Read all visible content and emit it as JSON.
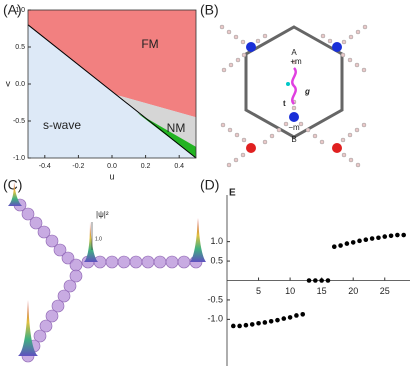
{
  "panel_labels": [
    "(A)",
    "(B)",
    "(C)",
    "(D)"
  ],
  "chart_data": [
    {
      "type": "phase",
      "x_label": "u",
      "y_label": "v",
      "xlim": [
        -0.5,
        0.5
      ],
      "ylim": [
        -1,
        1
      ],
      "xticks": [
        -0.4,
        -0.2,
        {
          "value": 0,
          "label": "0.0"
        },
        0.2,
        0.4
      ],
      "yticks": [
        {
          "value": 1,
          "label": "1.0"
        },
        0.5,
        {
          "value": 0,
          "label": "0.0"
        },
        -0.5,
        {
          "value": -1,
          "label": "-1.0"
        }
      ],
      "regions": [
        {
          "name": "s-wave",
          "color": "#dde9f7",
          "u": [
            -0.5,
            0.5,
            0.5,
            -0.5
          ],
          "v": [
            1,
            1,
            -1,
            -1
          ]
        },
        {
          "name": "FM",
          "color": "#f28080",
          "u": [
            -0.5,
            0.5,
            0.5,
            0.03,
            -0.5
          ],
          "v": [
            1,
            1,
            -0.45,
            -0.15,
            0.8
          ]
        },
        {
          "name": "NM",
          "color": "#d6d6d6",
          "u": [
            0.03,
            0.5,
            0.5
          ],
          "v": [
            -0.15,
            -0.45,
            -1
          ]
        },
        {
          "color": "#22b322",
          "u": [
            0.15,
            0.5,
            0.5
          ],
          "v": [
            -0.39,
            -0.85,
            -1
          ]
        }
      ],
      "boundary": {
        "u": [
          -0.5,
          0.5
        ],
        "v": [
          0.8,
          -1
        ],
        "color": "#000000"
      }
    },
    {
      "type": "scatter",
      "y_label": "E",
      "color": "#000000",
      "xlim": [
        0,
        29
      ],
      "ylim": [
        -2.2,
        2.2
      ],
      "xticks": [
        5,
        10,
        15,
        20,
        25
      ],
      "yticks": [
        {
          "value": 1,
          "label": "1.0"
        },
        0.5,
        -0.5,
        {
          "value": -1,
          "label": "-1.0"
        }
      ],
      "x": [
        1,
        2,
        3,
        4,
        5,
        6,
        7,
        8,
        9,
        10,
        11,
        12,
        13,
        14,
        15,
        16,
        17,
        18,
        19,
        20,
        21,
        22,
        23,
        24,
        25,
        26,
        27,
        28
      ],
      "values": [
        -1.17,
        -1.17,
        -1.15,
        -1.13,
        -1.1,
        -1.08,
        -1.05,
        -1.02,
        -0.98,
        -0.95,
        -0.9,
        -0.87,
        0,
        0,
        0,
        0,
        0.87,
        0.9,
        0.95,
        0.98,
        1.02,
        1.05,
        1.08,
        1.1,
        1.13,
        1.15,
        1.17,
        1.17
      ]
    }
  ],
  "lattice": {
    "labels": [
      "A",
      "+m",
      "g",
      "t",
      "−m",
      "B"
    ]
  },
  "wavefunction": {
    "axis_label": "|ψ|²",
    "tick": "1.0"
  }
}
